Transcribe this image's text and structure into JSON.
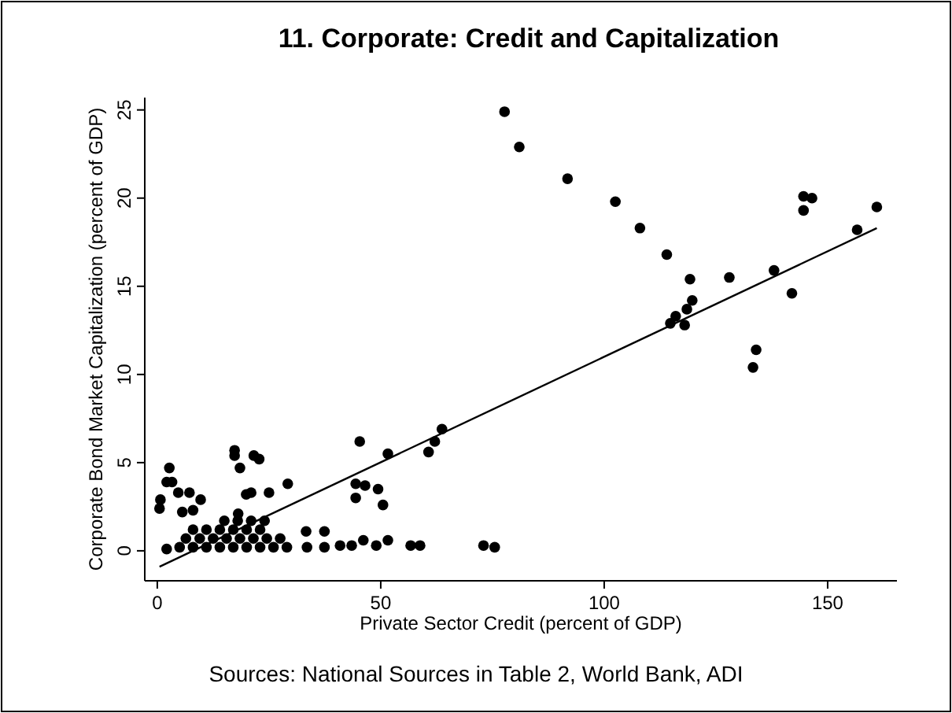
{
  "chart_data": {
    "type": "scatter",
    "title": "11. Corporate: Credit and Capitalization",
    "xlabel": "Private Sector Credit (percent of GDP)",
    "ylabel": "Corporate Bond Market Capitalization (percent of GDP)",
    "annotations": [
      "Sources: National Sources in Table 2, World Bank, ADI"
    ],
    "xlim": [
      -2.8,
      165.5
    ],
    "xticks": [
      0,
      50,
      100,
      150
    ],
    "ylim": [
      -1.7,
      25.7
    ],
    "yticks": [
      0,
      5,
      10,
      15,
      20,
      25
    ],
    "grid": false,
    "series": [
      {
        "marker": "circle",
        "color": "#000000",
        "x": [
          77.7,
          81,
          91.8,
          102.5,
          108,
          114,
          119.2,
          128,
          119.7,
          118.5,
          116,
          114.8,
          118,
          138,
          142,
          144.6,
          146.5,
          144.6,
          156.6,
          161,
          134,
          133.3,
          0.5,
          0.7,
          2.1,
          2.7,
          3.3,
          4.7,
          7.2,
          5.6,
          8,
          9.7,
          17.3,
          17.3,
          18.5,
          21.6,
          22.8,
          19.9,
          21,
          25,
          29.2,
          18.1,
          44.4,
          46.5,
          45.3,
          44.4,
          49.4,
          50.5,
          51.6,
          60.7,
          62.1,
          63.7,
          2.1,
          5,
          8,
          11,
          14,
          17,
          20,
          23,
          26,
          29,
          33.5,
          37.4,
          40.9,
          43.5,
          46.1,
          49,
          51.6,
          56.7,
          58.8,
          73,
          75.5,
          6.4,
          9.5,
          12.5,
          15.5,
          18.5,
          21.5,
          24.5,
          27.5,
          8,
          11,
          14,
          17,
          20,
          23,
          33.3,
          37.4,
          15,
          18,
          21,
          24
        ],
        "values": [
          24.9,
          22.9,
          21.1,
          19.8,
          18.3,
          16.8,
          15.4,
          15.5,
          14.2,
          13.7,
          13.3,
          12.9,
          12.8,
          15.9,
          14.6,
          20.1,
          20,
          19.3,
          18.2,
          19.5,
          11.4,
          10.4,
          2.4,
          2.9,
          3.9,
          4.7,
          3.9,
          3.3,
          3.3,
          2.2,
          2.3,
          2.9,
          5.7,
          5.4,
          4.7,
          5.4,
          5.2,
          3.2,
          3.3,
          3.3,
          3.8,
          2.1,
          3.8,
          3.7,
          6.2,
          3,
          3.5,
          2.6,
          5.5,
          5.6,
          6.2,
          6.9,
          0.1,
          0.2,
          0.2,
          0.2,
          0.2,
          0.2,
          0.2,
          0.2,
          0.2,
          0.2,
          0.2,
          0.2,
          0.3,
          0.3,
          0.6,
          0.3,
          0.6,
          0.3,
          0.3,
          0.3,
          0.2,
          0.7,
          0.7,
          0.7,
          0.7,
          0.7,
          0.7,
          0.7,
          0.7,
          1.2,
          1.2,
          1.2,
          1.2,
          1.2,
          1.2,
          1.1,
          1.1,
          1.7,
          1.7,
          1.7,
          1.7
        ]
      },
      {
        "type": "line",
        "color": "#000000",
        "x": [
          0.5,
          161
        ],
        "values": [
          -0.9,
          18.3
        ]
      }
    ]
  }
}
